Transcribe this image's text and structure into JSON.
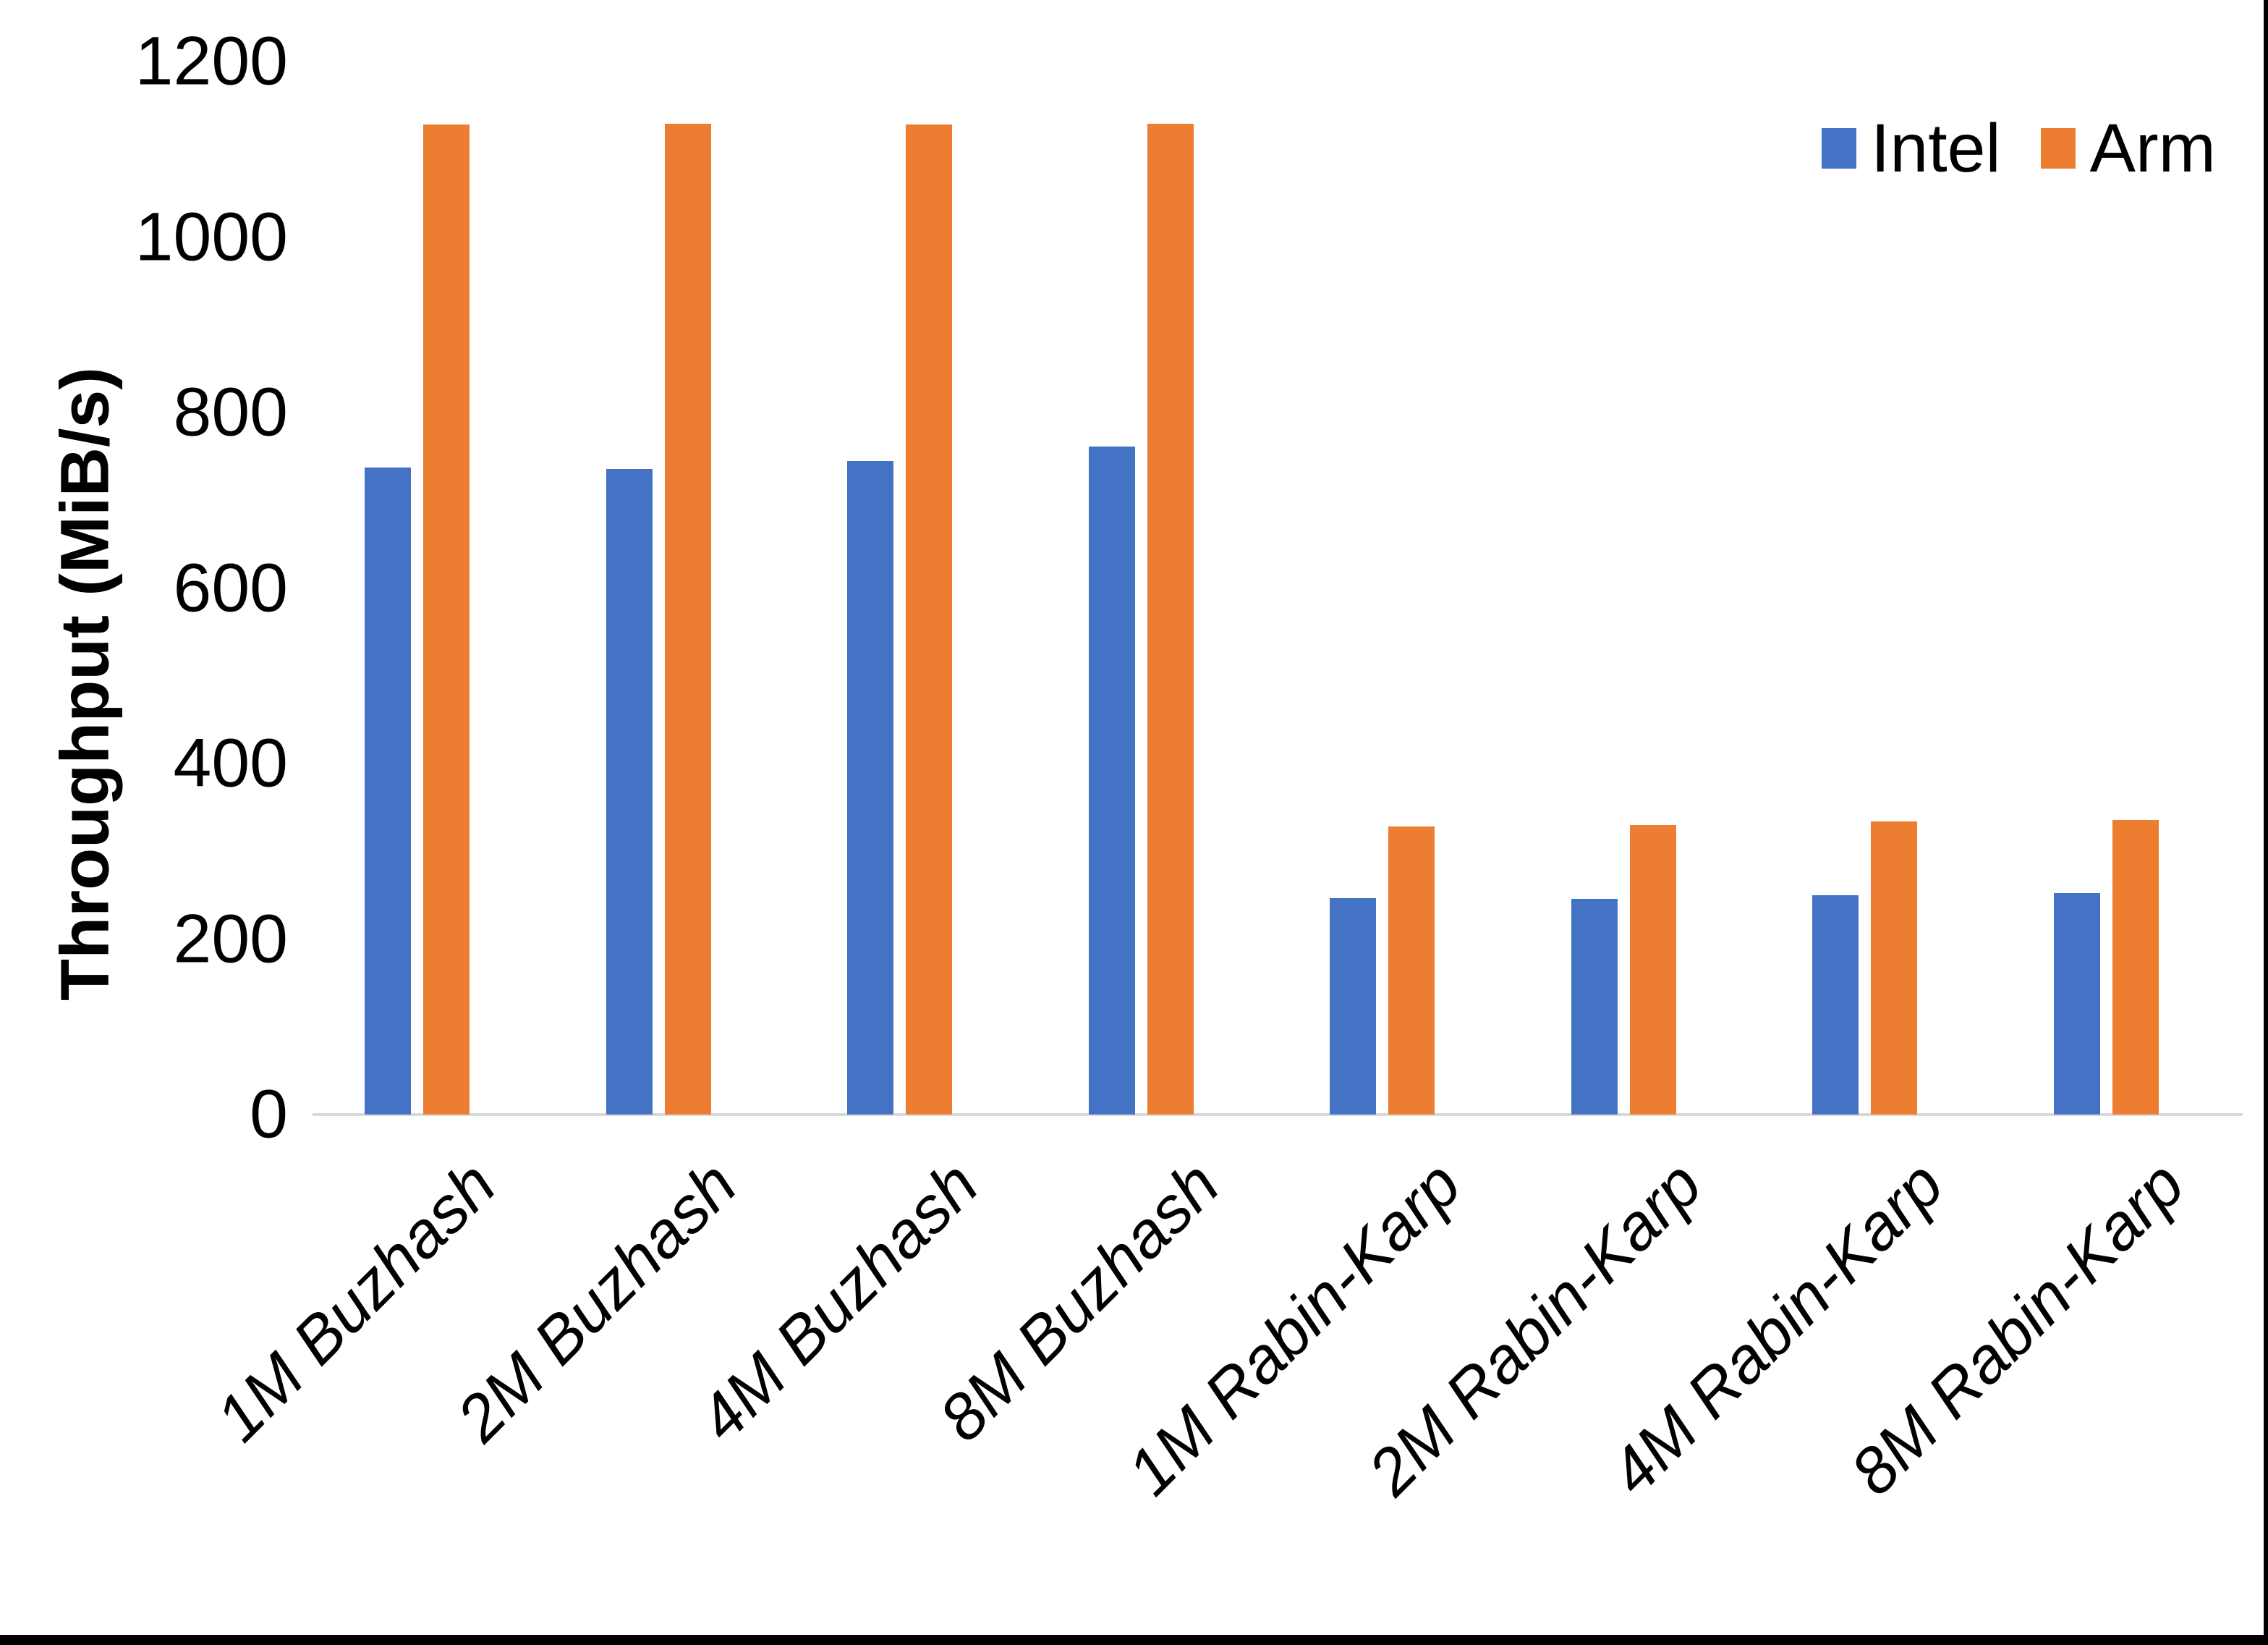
{
  "chart_data": {
    "type": "bar",
    "title": "",
    "xlabel": "",
    "ylabel": "Throughput (MiB/s)",
    "ylim": [
      0,
      1200
    ],
    "yticks": [
      0,
      200,
      400,
      600,
      800,
      1000,
      1200
    ],
    "grid": false,
    "legend_position": "top-right",
    "categories": [
      "1M Buzhash",
      "2M Buzhash",
      "4M Buzhash",
      "8M Buzhash",
      "1M Rabin-Karp",
      "2M Rabin-Karp",
      "4M Rabin-Karp",
      "8M Rabin-Karp"
    ],
    "series": [
      {
        "name": "Intel",
        "color": "#4472C4",
        "values": [
          737,
          736,
          745,
          761,
          247,
          246,
          250,
          252
        ]
      },
      {
        "name": "Arm",
        "color": "#ED7D31",
        "values": [
          1128,
          1129,
          1128,
          1129,
          328,
          330,
          334,
          336
        ]
      }
    ]
  },
  "colors": {
    "intel": "#4472C4",
    "arm": "#ED7D31",
    "axis_line": "#D9D9D9",
    "text": "#000000",
    "background": "#FFFFFF",
    "page_border": "#000000"
  }
}
